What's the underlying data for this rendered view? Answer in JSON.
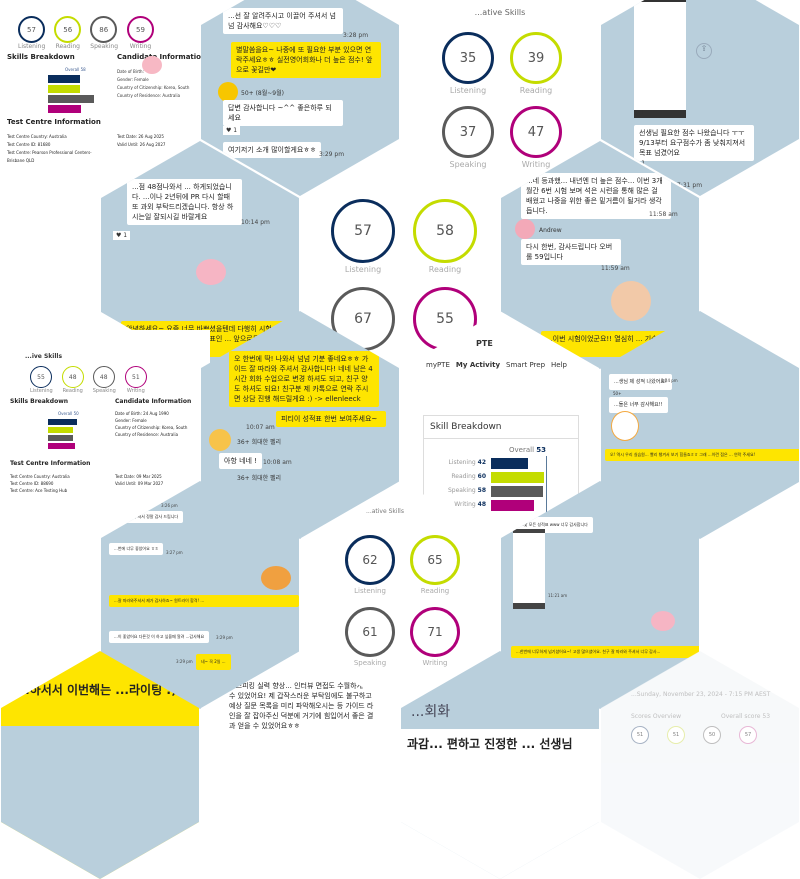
{
  "colors": {
    "listening": "#0a2d5c",
    "reading": "#c4dc00",
    "speaking": "#5a5a5a",
    "writing": "#b0007a",
    "chat_bg": "#b9cfdc",
    "kakao_yellow": "#fee500"
  },
  "labels": {
    "listening": "Listening",
    "reading": "Reading",
    "speaking": "Speaking",
    "writing": "Writing"
  },
  "report1": {
    "scores": [
      "57",
      "56",
      "86",
      "59"
    ],
    "skills_title": "Skills Breakdown",
    "overall": "Overall 58",
    "candidate_title": "Candidate Information",
    "candidate": [
      "Date of Birth:",
      "Gender: Female",
      "Country of Citizenship: Korea, South",
      "Country of Residence: Australia"
    ],
    "centre_title": "Test Centre Information",
    "centre": [
      "Test Centre Country: Australia",
      "Test Centre ID: 81680",
      "Test Centre: Pearson Professional Centers-Brisbane QLD"
    ],
    "dates": [
      "Test Date: 26 Aug 2025",
      "Valid Until: 26 Aug 2027"
    ]
  },
  "report2": {
    "header": "...ive Skills",
    "scores": [
      "55",
      "48",
      "48",
      "51"
    ],
    "skills_title": "Skills Breakdown",
    "overall": "Overall 50",
    "candidate_title": "Candidate Information",
    "candidate": [
      "Date of Birth: 24 Aug 1990",
      "Gender: Female",
      "Country of Citizenship: Korea, South",
      "Country of Residence: Australia"
    ],
    "centre_title": "Test Centre Information",
    "centre": [
      "Test Centre Country: Australia",
      "Test Centre ID: 88690",
      "Test Centre: Ace Testing Hub"
    ],
    "dates": [
      "Test Date: 09 Mar 2025",
      "Valid Until: 09 Mar 2027"
    ]
  },
  "chat1": {
    "msg1": "...선 잘 알려주시고 이끌어 주셔서 넘넘 감사해요♡♡♡",
    "time1": "3:28 pm",
    "reply": "별말씀을요~ 나중에 또 필요한 부분 있으면 연락주세요ㅎㅎ 실전영어회화나 더 높은 점수! 앞으로 꽃길만❤",
    "time2": "3:28 pm",
    "sender": "50+ (8월~9월)",
    "msg2": "답변 감사합니다 ~^^ 좋은하루 되세요",
    "likes": "1",
    "msg3": "여기저기 소개 많이할게요ㅎㅎ",
    "time3": "3:29 pm"
  },
  "scores_a": {
    "header": "...ative Skills",
    "values": [
      "35",
      "39",
      "37",
      "47"
    ]
  },
  "chat2": {
    "likes": "1",
    "msg": "선생님 필요한 점수 나왔습니다 ㅜㅜ 9/13부터 요구점수가 좀 낮춰지져서 목표 넘겼어요",
    "likes2": "1",
    "time": "7:31 pm"
  },
  "chat3": {
    "msg": "...점 48점나와서 ... 하게되었습니다. ...이나 2년뒤에 PR 다시 할때 또 과외 부탁드리겠습니다. 항상 하시는일 잘되시길 바랄게요",
    "time": "10:14 pm",
    "likes": "1",
    "reply": "안녕하세요~ 요즘 너무 바쁘셨을텐데 다행히 시험 보셨다니 너무 기쁘네요!! ⭐ 첫 목표인 ... 앞으로도 꽃길만 ... 따라와주셔서 감사..."
  },
  "scores_b": {
    "values": [
      "57",
      "58",
      "67",
      "55"
    ]
  },
  "chat4": {
    "msg": "...네 등과했... 내년엔 더 높은 점수... 이번 3개월간 6번 시험 보며 석은 시련을 통해 많은 걸 배웠고 나중을 위한 좋은 밑거름이 될거라 생각 듭니다.",
    "time1": "11:58 am",
    "sender": "Andrew",
    "msg2": "다시 한번, 감사드립니다 오버롤 59입니다",
    "time2": "11:59 am",
    "reply": "...이번 시험이었군요!! 열심히 ... 기술적 문제 ... 축하..."
  },
  "chat5": {
    "reply": "오 한번에 딱! 나와서 넘넘 기분 좋네요ㅎㅎ 가이드 잘 따라와 주셔서 감사합니다! 네네 남은 4시간 회화 수업으로 변경 하셔도 되고, 친구 양도 하셔도 되요! 친구분 제 카톡으로 연락 주시면 상담 진행 해드릴게요 :) -> ellenleeck",
    "reply2": "피티이 성적표 한번 보여주세요~",
    "time1": "10:07 am",
    "sender": "36+ 희대한 펠리",
    "msg": "아항 네네 !",
    "time2": "10:08 am",
    "likes": "1"
  },
  "breakdown": {
    "nav": [
      "myPTE",
      "My Activity",
      "Smart Prep",
      "Help"
    ],
    "title": "Skill Breakdown",
    "overall_label": "Overall",
    "overall": "53",
    "rows": [
      {
        "label": "Listening",
        "value": "42",
        "v": 42
      },
      {
        "label": "Reading",
        "value": "60",
        "v": 60
      },
      {
        "label": "Speaking",
        "value": "58",
        "v": 58
      },
      {
        "label": "Writing",
        "value": "48",
        "v": 48
      }
    ],
    "logo": "PTE"
  },
  "chat6": {
    "msg1": "...생님 제 성적 나왔어요!",
    "time": "3:24 pm",
    "sender": "50+",
    "msg2": "...들은 너무 감사해요!!",
    "reply": "오! 역시 우리 실습원... 빨리 챙겨서 보기 힘들죠ㅎㅎ 그래 ...이런 점은 ... 연락 주세요!"
  },
  "chat7": {
    "time1": "3:26 pm",
    "msg1": "...교실에서 주셔서 정말 감사 드립니다",
    "msg2": "...번에 너무 좋았어요 ㅎㅎ",
    "time2": "3:27 pm",
    "reply": "...잘 따라와주셔서 제가 감사하죠~ 원트라이 합격! ...",
    "msg3": "...이 좋았어요 다른것 이 하고 싶을때 알려 ...감사해요",
    "time3": "3:29 pm",
    "reply2": "네~ 꼭 2일 ...",
    "time4": "3:29 pm",
    "badge": "50"
  },
  "scores_c": {
    "header": "...ative Skills",
    "values": [
      "62",
      "65",
      "61",
      "71"
    ]
  },
  "chat8": {
    "msg": "...낮 모든 성적표 www 너무 감사합니다",
    "time": "11:21 am",
    "reply": "...한번에 너무하게 넘기셨어요~! 고생 많으셨어요. 친구 잘 따라와 주셔서 너무 감사..."
  },
  "bottom": {
    "yellow": "...하서서 이번해는 ...라이팅 :)",
    "text": "...스피킹 실력 향상... 인터뷰 면접도 수월하게 볼 수 있었어요! 제 갑작스러운 부탁임에도 불구하고 예상 질문 목록을 미리 파악해오시는 등 가이드 라인을 잘 잡아주신 덕분에 거기에 힘입어서 좋은 결과 얻을 수 있었어요ㅎㅎ",
    "heading": "...회화",
    "heading2": "과감... 편하고 진정한 ... 선생님",
    "date": "...Sunday, November 23, 2024 - 7:15 PM AEST",
    "overview": "Scores Overview",
    "overall": "Overall score 53",
    "values": [
      "51",
      "51",
      "50",
      "57"
    ]
  }
}
